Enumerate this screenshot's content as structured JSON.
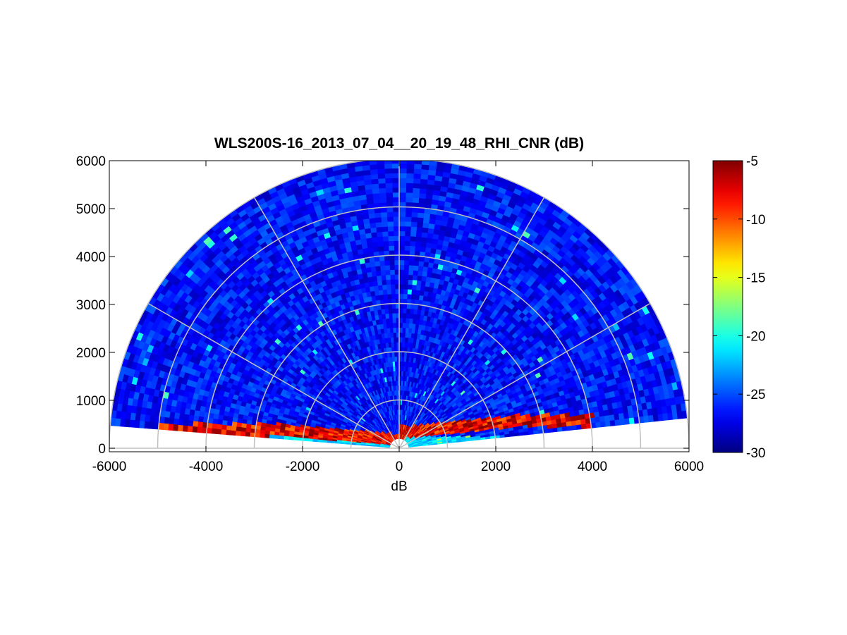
{
  "chart_data": {
    "type": "heatmap",
    "subtype": "polar-rhi",
    "title": "WLS200S-16_2013_07_04__20_19_48_RHI_CNR (dB)",
    "xlabel": "dB",
    "ylabel": "",
    "xlim": [
      -6000,
      6000
    ],
    "ylim": [
      0,
      6000
    ],
    "x_ticks": [
      "-6000",
      "-4000",
      "-2000",
      "0",
      "2000",
      "4000",
      "6000"
    ],
    "y_ticks": [
      "0",
      "1000",
      "2000",
      "3000",
      "4000",
      "5000",
      "6000"
    ],
    "polar_grid": {
      "range_rings": [
        1000,
        2000,
        3000,
        4000,
        5000,
        6000
      ],
      "spokes_deg": [
        0,
        30,
        60,
        90,
        120,
        150,
        180
      ]
    },
    "scan": {
      "max_range": 6000,
      "elevation_start_deg": 6,
      "elevation_end_deg": 175,
      "range_gate": 100,
      "background_level_db": -26.5
    },
    "aerosol_layer": {
      "level_db": -5,
      "left_height_range": [
        300,
        500
      ],
      "right_height_range": [
        450,
        700
      ],
      "extent": [
        -5000,
        4000
      ]
    },
    "colorbar": {
      "colormap": "jet",
      "min": -30,
      "max": -5,
      "ticks": [
        "-5",
        "-10",
        "-15",
        "-20",
        "-25",
        "-30"
      ],
      "tick_values": [
        -5,
        -10,
        -15,
        -20,
        -25,
        -30
      ]
    },
    "grid": true,
    "legend": "none"
  },
  "colors": {
    "grid_line": "#c0c0c0",
    "axes": "#000000",
    "background": "#ffffff"
  }
}
